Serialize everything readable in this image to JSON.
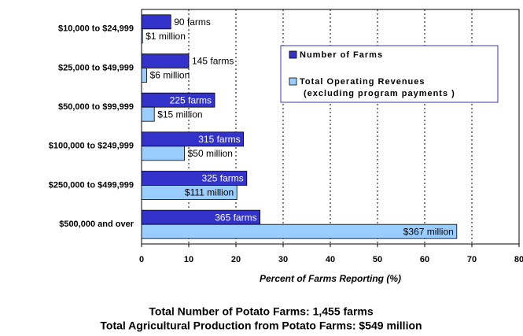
{
  "chart_data": {
    "type": "barh",
    "categories": [
      "$10,000 to $24,999",
      "$25,000 to $49,999",
      "$50,000 to $99,999",
      "$100,000 to $249,999",
      "$250,000 to $499,999",
      "$500,000 and over"
    ],
    "series": [
      {
        "name": "Number of Farms",
        "color": "#3333cc",
        "text_color": "#ffffff",
        "values": [
          6.2,
          10.0,
          15.5,
          21.6,
          22.3,
          25.1
        ],
        "labels": [
          "90 farms",
          "145 farms",
          "225 farms",
          "315 farms",
          "325 farms",
          "365 farms"
        ]
      },
      {
        "name": "Total Operating Revenues\n(excluding program payments )",
        "color": "#99ccff",
        "text_color": "#000000",
        "values": [
          0.2,
          1.1,
          2.7,
          9.1,
          20.2,
          66.8
        ],
        "labels": [
          "$1 million",
          "$6 million",
          "$15 million",
          "$50 million",
          "$111 million",
          "$367 million"
        ]
      }
    ],
    "xlim": [
      0,
      80
    ],
    "xticks": [
      0,
      10,
      20,
      30,
      40,
      50,
      60,
      70,
      80
    ],
    "grid": true,
    "x_label": "Percent of Farms Reporting (%)",
    "footnotes": [
      "Total Number of Potato Farms: 1,455 farms",
      "Total Agricultural Production from Potato Farms: $549 million"
    ]
  }
}
